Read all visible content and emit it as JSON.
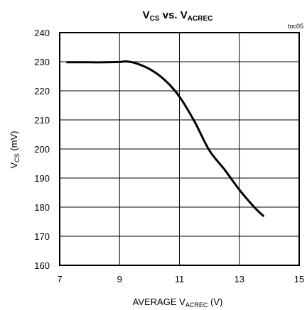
{
  "chart_data": {
    "type": "line",
    "title": "V_CS vs. V_ACREC",
    "title_parts": {
      "main1": "V",
      "sub1": "CS",
      "mid": " vs. V",
      "sub2": "ACREC"
    },
    "note": "toc05",
    "xlabel": "AVERAGE V_ACREC (V)",
    "xlabel_parts": {
      "pre": "AVERAGE V",
      "sub": "ACREC",
      "post": " (V)"
    },
    "ylabel": "V_CS (mV)",
    "ylabel_parts": {
      "pre": "V",
      "sub": "CS",
      "post": " (mV)"
    },
    "xlim": [
      7,
      15
    ],
    "ylim": [
      160,
      240
    ],
    "xticks": [
      "7",
      "9",
      "11",
      "13",
      "15"
    ],
    "yticks": [
      "160",
      "170",
      "180",
      "190",
      "200",
      "210",
      "220",
      "230",
      "240"
    ],
    "grid": true,
    "series": [
      {
        "color": "#000000",
        "x": [
          7.25,
          8,
          8.5,
          9,
          9.2,
          9.5,
          10,
          10.5,
          11,
          11.5,
          12,
          12.5,
          13,
          13.5,
          13.8
        ],
        "y": [
          229.8,
          229.8,
          229.8,
          229.9,
          230.1,
          229.6,
          227.5,
          223.8,
          218.0,
          209.5,
          199.5,
          193.0,
          186.0,
          180.0,
          177.0
        ]
      }
    ]
  }
}
